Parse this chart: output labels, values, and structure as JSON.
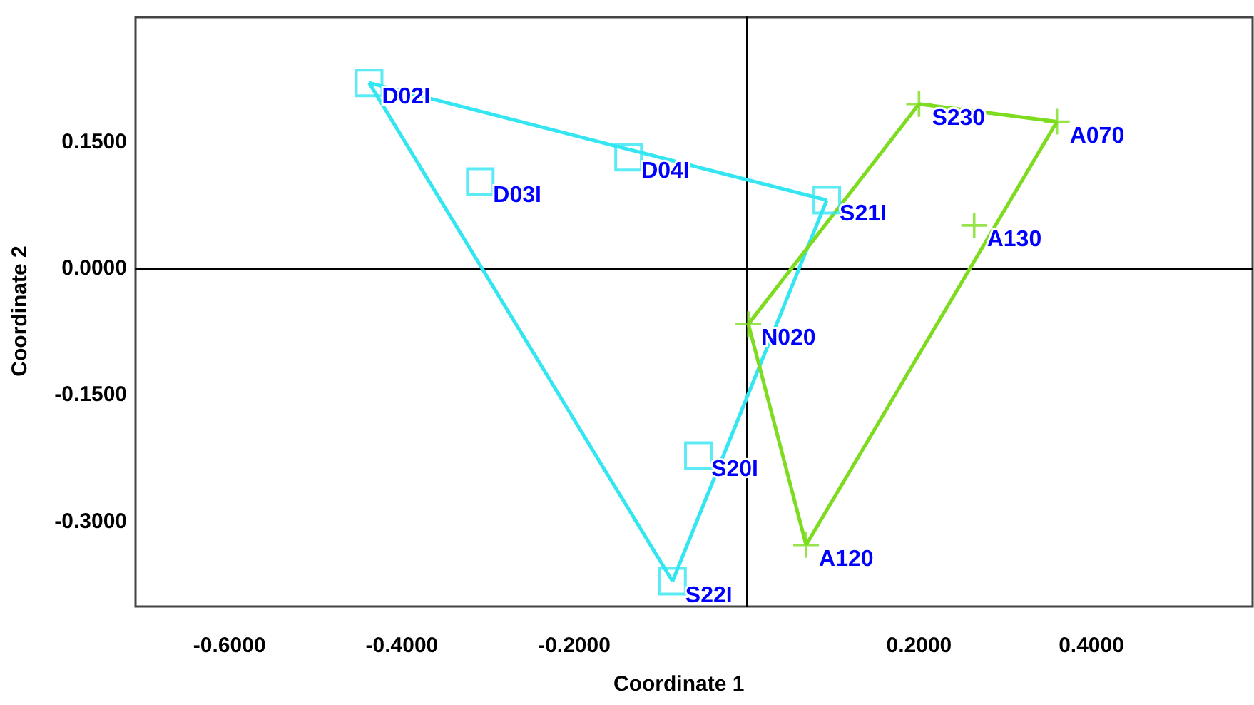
{
  "chart_data": {
    "type": "scatter",
    "xlabel": "Coordinate 1",
    "ylabel": "Coordinate 2",
    "xlim": [
      -0.709,
      0.587
    ],
    "ylim": [
      -0.401,
      0.298
    ],
    "xticks": [
      {
        "value": -0.6,
        "label": "-0.6000"
      },
      {
        "value": -0.4,
        "label": "-0.4000"
      },
      {
        "value": -0.2,
        "label": "-0.2000"
      },
      {
        "value": 0.2,
        "label": "0.2000"
      },
      {
        "value": 0.4,
        "label": "0.4000"
      }
    ],
    "yticks": [
      {
        "value": -0.3,
        "label": "-0.3000"
      },
      {
        "value": -0.15,
        "label": "-0.1500"
      },
      {
        "value": 0,
        "label": "0.0000"
      },
      {
        "value": 0.15,
        "label": "0.1500"
      }
    ],
    "series": [
      {
        "color": "#33e6f2",
        "marker": "square",
        "x": [
          -0.438,
          -0.309,
          -0.137,
          0.093,
          -0.056,
          -0.086
        ],
        "values": [
          0.22,
          0.103,
          0.132,
          0.081,
          -0.222,
          -0.371
        ]
      },
      {
        "color": "#7ddc1f",
        "marker": "cross",
        "x": [
          0.2,
          0.36,
          0.264,
          0.002,
          0.069
        ],
        "values": [
          0.195,
          0.174,
          0.051,
          -0.066,
          -0.328
        ]
      },
      {
        "type": "line",
        "color": "#33e6f2",
        "marker": "none",
        "x": [
          -0.438,
          0.093
        ],
        "values": [
          0.22,
          0.081
        ]
      },
      {
        "type": "line",
        "color": "#33e6f2",
        "marker": "none",
        "x": [
          -0.086,
          0.093
        ],
        "values": [
          -0.371,
          0.081
        ]
      },
      {
        "type": "line",
        "color": "#33e6f2",
        "marker": "none",
        "x": [
          -0.438,
          -0.086
        ],
        "values": [
          0.22,
          -0.371
        ]
      },
      {
        "type": "line",
        "color": "#7ddc1f",
        "marker": "none",
        "x": [
          0.2,
          0.36
        ],
        "values": [
          0.195,
          0.174
        ]
      },
      {
        "type": "line",
        "color": "#7ddc1f",
        "marker": "none",
        "x": [
          0.069,
          0.36
        ],
        "values": [
          -0.328,
          0.174
        ]
      },
      {
        "type": "line",
        "color": "#7ddc1f",
        "marker": "none",
        "x": [
          0.002,
          0.069
        ],
        "values": [
          -0.066,
          -0.328
        ]
      },
      {
        "type": "line",
        "color": "#7ddc1f",
        "marker": "none",
        "x": [
          0.002,
          0.2
        ],
        "values": [
          -0.066,
          0.195
        ]
      }
    ],
    "annotations": [
      {
        "text": "D02I",
        "x": -0.438,
        "y": 0.22
      },
      {
        "text": "D03I",
        "x": -0.309,
        "y": 0.103
      },
      {
        "text": "D04I",
        "x": -0.137,
        "y": 0.132
      },
      {
        "text": "S21I",
        "x": 0.093,
        "y": 0.081
      },
      {
        "text": "S20I",
        "x": -0.056,
        "y": -0.222
      },
      {
        "text": "S22I",
        "x": -0.086,
        "y": -0.371
      },
      {
        "text": "S230",
        "x": 0.2,
        "y": 0.195
      },
      {
        "text": "A070",
        "x": 0.36,
        "y": 0.174
      },
      {
        "text": "A130",
        "x": 0.264,
        "y": 0.051
      },
      {
        "text": "N020",
        "x": 0.002,
        "y": -0.066
      },
      {
        "text": "A120",
        "x": 0.069,
        "y": -0.328
      }
    ]
  }
}
